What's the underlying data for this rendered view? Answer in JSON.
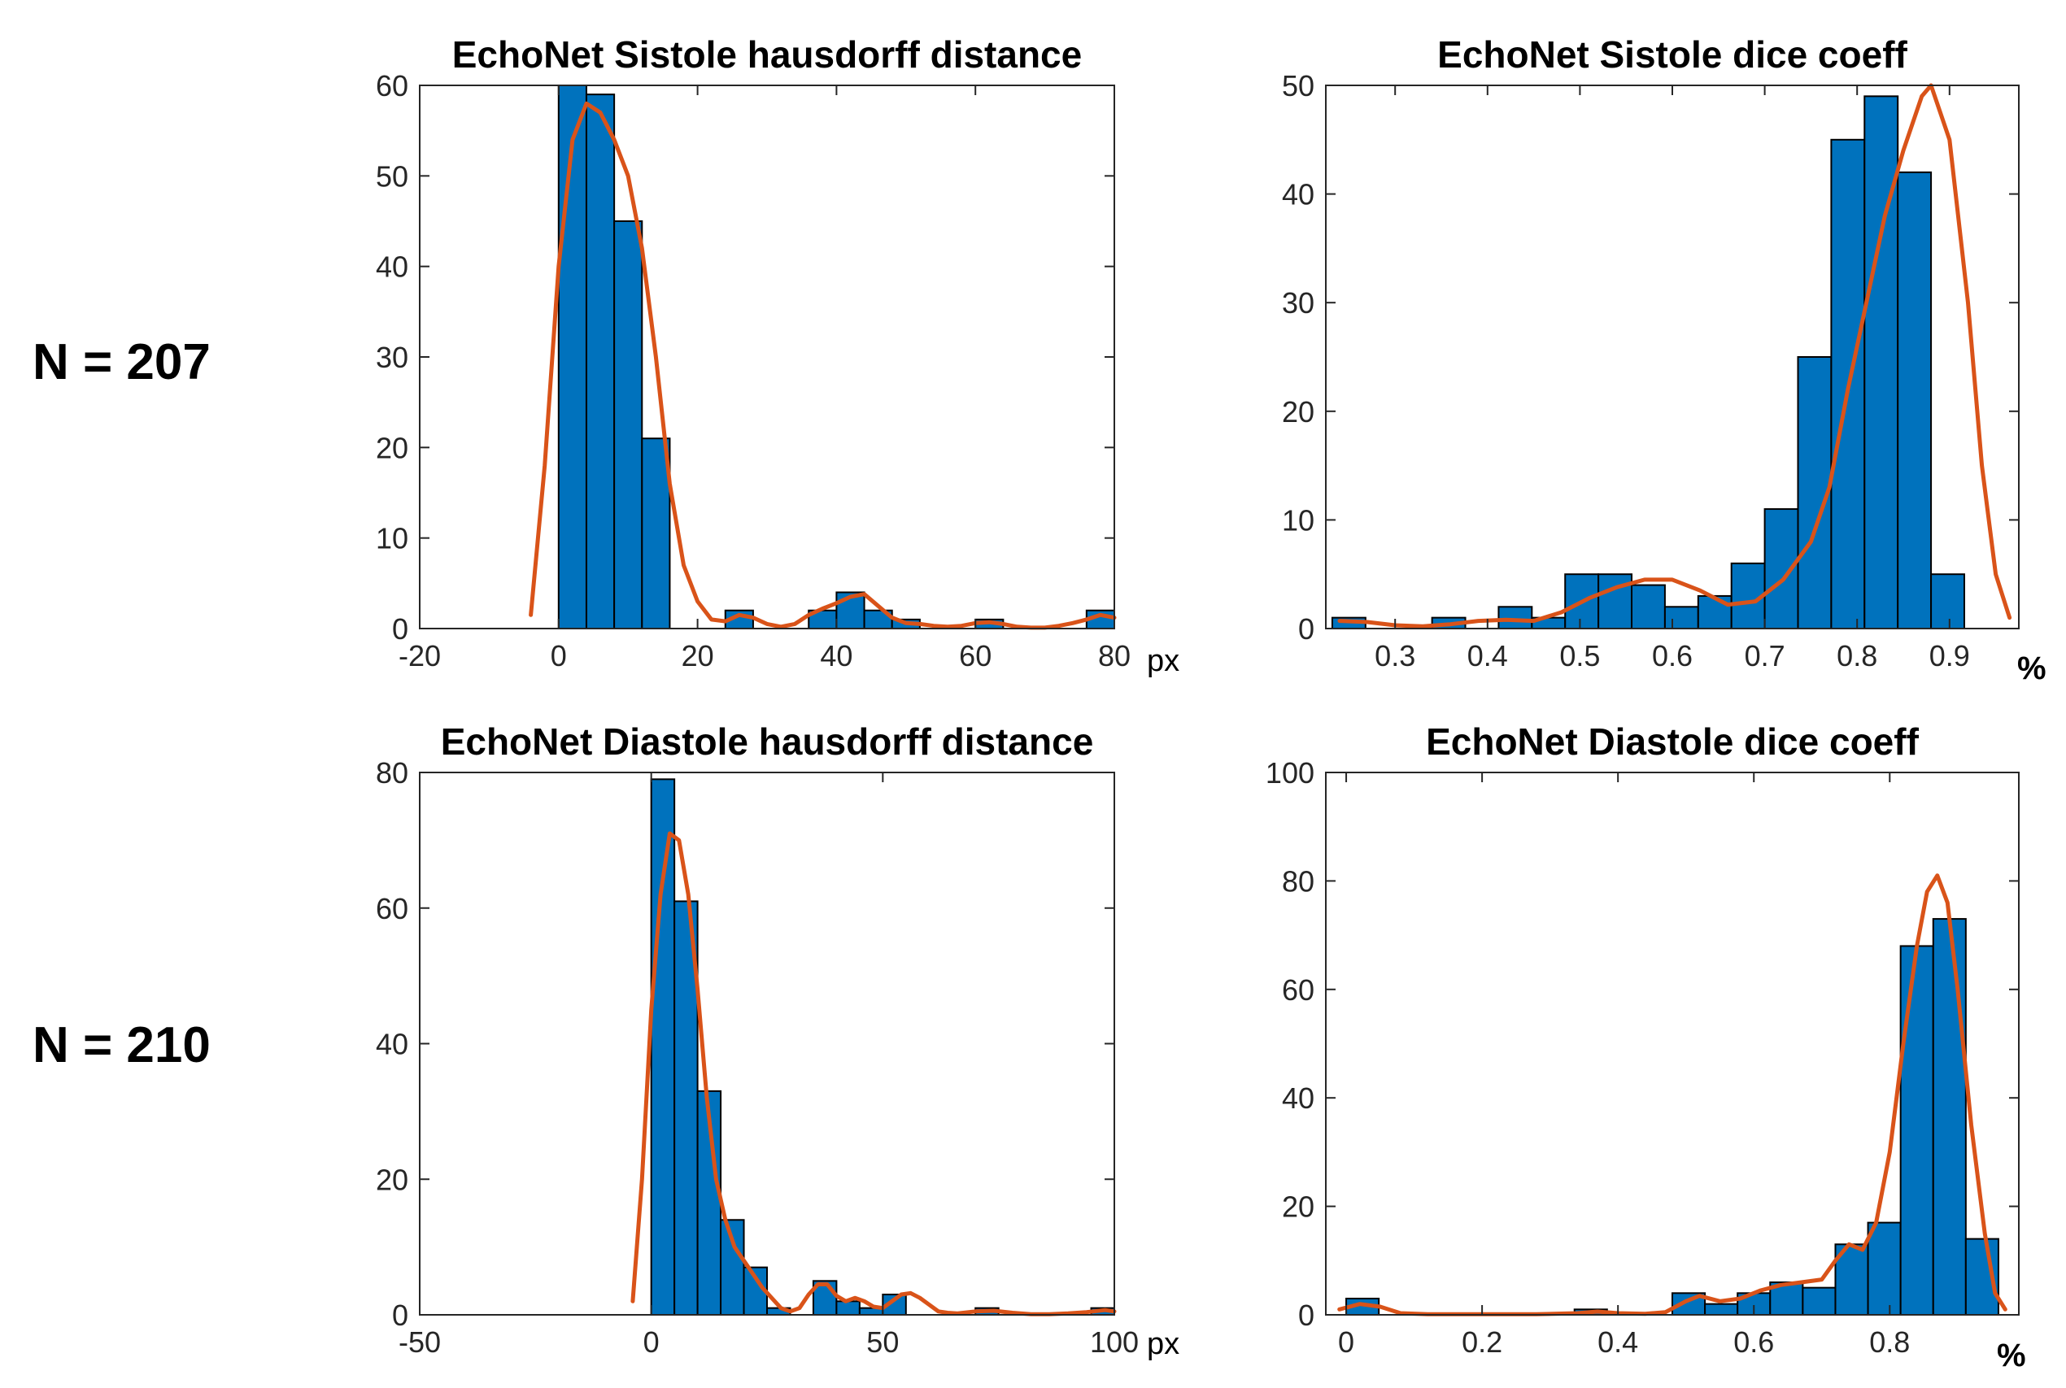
{
  "row_labels": [
    "N = 207",
    "N = 210"
  ],
  "colors": {
    "bar_fill": "#0072BD",
    "bar_edge": "#000000",
    "curve": "#D95319",
    "axis": "#262626"
  },
  "chart_data": [
    {
      "type": "bar",
      "title": "EchoNet Sistole hausdorff distance",
      "unit": "px",
      "xlim": [
        -20,
        80
      ],
      "ylim": [
        0,
        60
      ],
      "xticks": [
        -20,
        0,
        20,
        40,
        60,
        80
      ],
      "xtick_labels": [
        "-20",
        "0",
        "20",
        "40",
        "60",
        "80"
      ],
      "yticks": [
        0,
        10,
        20,
        30,
        40,
        50,
        60
      ],
      "ytick_labels": [
        "0",
        "10",
        "20",
        "30",
        "40",
        "50",
        "60"
      ],
      "bin_edges": [
        0,
        4,
        8,
        12,
        16,
        20,
        24,
        28,
        32,
        36,
        40,
        44,
        48,
        52,
        56,
        60,
        64,
        68,
        72,
        76,
        80
      ],
      "values": [
        60,
        59,
        45,
        21,
        0,
        0,
        2,
        0,
        0,
        2,
        4,
        2,
        1,
        0,
        0,
        1,
        0,
        0,
        0,
        2
      ],
      "curve": [
        [
          -4,
          1.5
        ],
        [
          -2,
          18
        ],
        [
          0,
          40
        ],
        [
          2,
          54
        ],
        [
          4,
          58
        ],
        [
          6,
          57
        ],
        [
          8,
          54
        ],
        [
          10,
          50
        ],
        [
          12,
          42
        ],
        [
          14,
          30
        ],
        [
          16,
          16
        ],
        [
          18,
          7
        ],
        [
          20,
          3
        ],
        [
          22,
          1
        ],
        [
          24,
          0.8
        ],
        [
          26,
          1.5
        ],
        [
          28,
          1.2
        ],
        [
          30,
          0.5
        ],
        [
          32,
          0.2
        ],
        [
          34,
          0.5
        ],
        [
          36,
          1.5
        ],
        [
          38,
          2.2
        ],
        [
          40,
          2.8
        ],
        [
          42,
          3.5
        ],
        [
          44,
          3.8
        ],
        [
          46,
          2.5
        ],
        [
          48,
          1.2
        ],
        [
          50,
          0.6
        ],
        [
          52,
          0.5
        ],
        [
          54,
          0.3
        ],
        [
          56,
          0.2
        ],
        [
          58,
          0.3
        ],
        [
          60,
          0.6
        ],
        [
          62,
          0.7
        ],
        [
          64,
          0.5
        ],
        [
          66,
          0.2
        ],
        [
          68,
          0.1
        ],
        [
          70,
          0.1
        ],
        [
          72,
          0.3
        ],
        [
          74,
          0.6
        ],
        [
          76,
          1
        ],
        [
          78,
          1.5
        ],
        [
          80,
          1.2
        ]
      ]
    },
    {
      "type": "bar",
      "title": "EchoNet Sistole dice coeff",
      "unit": "%",
      "xlim": [
        0.225,
        0.975
      ],
      "ylim": [
        0,
        50
      ],
      "xticks": [
        0.3,
        0.4,
        0.5,
        0.6,
        0.7,
        0.8,
        0.9
      ],
      "xtick_labels": [
        "0.3",
        "0.4",
        "0.5",
        "0.6",
        "0.7",
        "0.8",
        "0.9"
      ],
      "yticks": [
        0,
        10,
        20,
        30,
        40,
        50
      ],
      "ytick_labels": [
        "0",
        "10",
        "20",
        "30",
        "40",
        "50"
      ],
      "bin_edges": [
        0.232,
        0.268,
        0.304,
        0.34,
        0.376,
        0.412,
        0.448,
        0.484,
        0.52,
        0.556,
        0.592,
        0.628,
        0.664,
        0.7,
        0.736,
        0.772,
        0.808,
        0.844,
        0.88,
        0.916,
        0.952
      ],
      "values": [
        1,
        0,
        0,
        1,
        0,
        2,
        1,
        5,
        5,
        4,
        2,
        3,
        6,
        11,
        25,
        45,
        49,
        42,
        5,
        0
      ],
      "curve": [
        [
          0.24,
          0.7
        ],
        [
          0.27,
          0.6
        ],
        [
          0.3,
          0.3
        ],
        [
          0.33,
          0.2
        ],
        [
          0.36,
          0.4
        ],
        [
          0.39,
          0.7
        ],
        [
          0.42,
          0.8
        ],
        [
          0.45,
          0.7
        ],
        [
          0.48,
          1.5
        ],
        [
          0.51,
          2.8
        ],
        [
          0.54,
          3.8
        ],
        [
          0.57,
          4.5
        ],
        [
          0.6,
          4.5
        ],
        [
          0.63,
          3.5
        ],
        [
          0.66,
          2.2
        ],
        [
          0.69,
          2.5
        ],
        [
          0.72,
          4.5
        ],
        [
          0.75,
          8
        ],
        [
          0.77,
          13
        ],
        [
          0.79,
          22
        ],
        [
          0.81,
          30
        ],
        [
          0.83,
          38
        ],
        [
          0.85,
          44
        ],
        [
          0.87,
          49
        ],
        [
          0.88,
          50
        ],
        [
          0.9,
          45
        ],
        [
          0.92,
          30
        ],
        [
          0.935,
          15
        ],
        [
          0.95,
          5
        ],
        [
          0.965,
          1
        ]
      ]
    },
    {
      "type": "bar",
      "title": "EchoNet Diastole hausdorff distance",
      "unit": "px",
      "xlim": [
        -50,
        100
      ],
      "ylim": [
        0,
        80
      ],
      "xticks": [
        -50,
        0,
        50,
        100
      ],
      "xtick_labels": [
        "-50",
        "0",
        "50",
        "100"
      ],
      "yticks": [
        0,
        20,
        40,
        60,
        80
      ],
      "ytick_labels": [
        "0",
        "20",
        "40",
        "60",
        "80"
      ],
      "bin_edges": [
        0,
        5,
        10,
        15,
        20,
        25,
        30,
        35,
        40,
        45,
        50,
        55,
        60,
        65,
        70,
        75,
        80,
        85,
        90,
        95,
        100
      ],
      "values": [
        79,
        61,
        33,
        14,
        7,
        1,
        0,
        5,
        2,
        1,
        3,
        0,
        0,
        0,
        1,
        0,
        0,
        0,
        0,
        1
      ],
      "curve": [
        [
          -4,
          2
        ],
        [
          -2,
          20
        ],
        [
          0,
          45
        ],
        [
          2,
          62
        ],
        [
          4,
          71
        ],
        [
          6,
          70
        ],
        [
          8,
          62
        ],
        [
          10,
          48
        ],
        [
          12,
          32
        ],
        [
          14,
          20
        ],
        [
          16,
          14
        ],
        [
          18,
          10
        ],
        [
          20,
          8
        ],
        [
          22,
          6
        ],
        [
          24,
          4
        ],
        [
          26,
          2.5
        ],
        [
          28,
          1
        ],
        [
          30,
          0.5
        ],
        [
          32,
          1
        ],
        [
          34,
          3
        ],
        [
          36,
          4.5
        ],
        [
          38,
          4.5
        ],
        [
          40,
          2.8
        ],
        [
          42,
          2
        ],
        [
          44,
          2.5
        ],
        [
          46,
          2
        ],
        [
          48,
          1.2
        ],
        [
          50,
          1
        ],
        [
          52,
          2
        ],
        [
          54,
          3
        ],
        [
          56,
          3.2
        ],
        [
          58,
          2.5
        ],
        [
          60,
          1.5
        ],
        [
          62,
          0.5
        ],
        [
          64,
          0.3
        ],
        [
          66,
          0.2
        ],
        [
          70,
          0.5
        ],
        [
          74,
          0.6
        ],
        [
          78,
          0.3
        ],
        [
          82,
          0.1
        ],
        [
          86,
          0.1
        ],
        [
          90,
          0.2
        ],
        [
          94,
          0.4
        ],
        [
          98,
          0.7
        ],
        [
          100,
          0.5
        ]
      ]
    },
    {
      "type": "bar",
      "title": "EchoNet Diastole dice coeff",
      "unit": "%",
      "xlim": [
        -0.03,
        0.99
      ],
      "ylim": [
        0,
        100
      ],
      "xticks": [
        0,
        0.2,
        0.4,
        0.6,
        0.8
      ],
      "xtick_labels": [
        "0",
        "0.2",
        "0.4",
        "0.6",
        "0.8"
      ],
      "yticks": [
        0,
        20,
        40,
        60,
        80,
        100
      ],
      "ytick_labels": [
        "0",
        "20",
        "40",
        "60",
        "80",
        "100"
      ],
      "bin_edges": [
        0,
        0.048,
        0.096,
        0.144,
        0.192,
        0.24,
        0.288,
        0.336,
        0.384,
        0.432,
        0.48,
        0.528,
        0.576,
        0.624,
        0.672,
        0.72,
        0.768,
        0.816,
        0.864,
        0.912,
        0.96
      ],
      "values": [
        3,
        0,
        0,
        0,
        0,
        0,
        0,
        1,
        0,
        0,
        4,
        2,
        4,
        6,
        5,
        13,
        17,
        68,
        73,
        14
      ],
      "curve": [
        [
          -0.01,
          1
        ],
        [
          0.02,
          2
        ],
        [
          0.05,
          1.5
        ],
        [
          0.08,
          0.3
        ],
        [
          0.12,
          0.1
        ],
        [
          0.2,
          0.1
        ],
        [
          0.28,
          0.1
        ],
        [
          0.34,
          0.3
        ],
        [
          0.37,
          0.6
        ],
        [
          0.4,
          0.3
        ],
        [
          0.44,
          0.2
        ],
        [
          0.47,
          0.5
        ],
        [
          0.5,
          2.5
        ],
        [
          0.52,
          3.5
        ],
        [
          0.55,
          2.5
        ],
        [
          0.58,
          3
        ],
        [
          0.61,
          4.5
        ],
        [
          0.64,
          5.5
        ],
        [
          0.67,
          6
        ],
        [
          0.7,
          6.5
        ],
        [
          0.72,
          10
        ],
        [
          0.74,
          13
        ],
        [
          0.76,
          12
        ],
        [
          0.78,
          17
        ],
        [
          0.8,
          30
        ],
        [
          0.82,
          50
        ],
        [
          0.84,
          68
        ],
        [
          0.855,
          78
        ],
        [
          0.87,
          81
        ],
        [
          0.885,
          76
        ],
        [
          0.9,
          60
        ],
        [
          0.92,
          35
        ],
        [
          0.94,
          15
        ],
        [
          0.955,
          4
        ],
        [
          0.97,
          1
        ]
      ]
    }
  ]
}
